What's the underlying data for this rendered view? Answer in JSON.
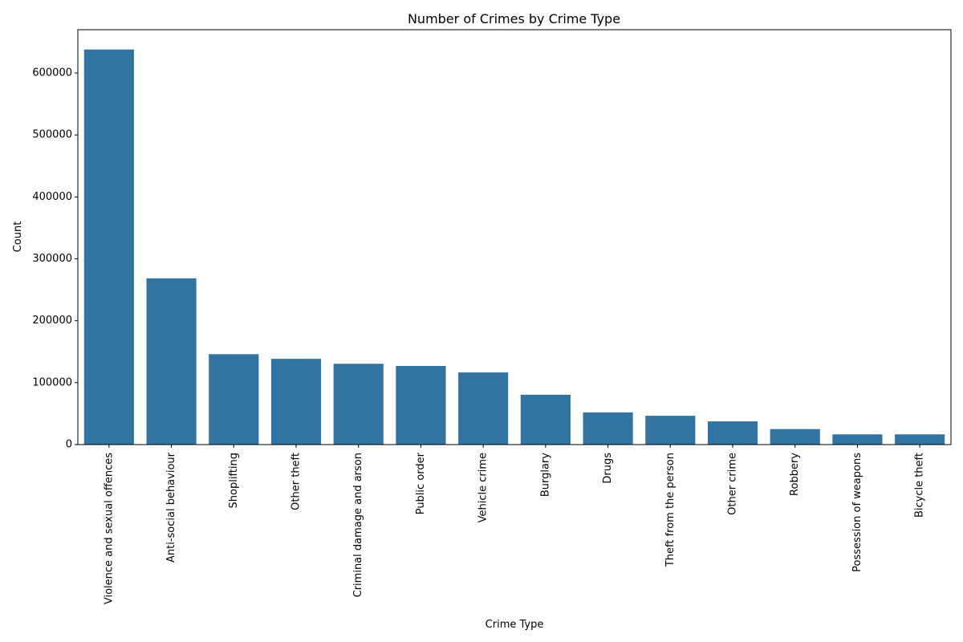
{
  "chart_data": {
    "type": "bar",
    "title": "Number of Crimes by Crime Type",
    "xlabel": "Crime Type",
    "ylabel": "Count",
    "categories": [
      "Violence and sexual offences",
      "Anti-social behaviour",
      "Shoplifting",
      "Other theft",
      "Criminal damage and arson",
      "Public order",
      "Vehicle crime",
      "Burglary",
      "Drugs",
      "Theft from the person",
      "Other crime",
      "Robbery",
      "Possession of weapons",
      "Bicycle theft"
    ],
    "values": [
      638000,
      268500,
      146000,
      138500,
      130500,
      127000,
      116500,
      80500,
      52000,
      46500,
      37500,
      25000,
      16500,
      16500
    ],
    "ylim": [
      0,
      670000
    ],
    "yticks": [
      0,
      100000,
      200000,
      300000,
      400000,
      500000,
      600000
    ],
    "ytick_labels": [
      "0",
      "100000",
      "200000",
      "300000",
      "400000",
      "500000",
      "600000"
    ],
    "bar_color": "#3274a1",
    "grid": false,
    "legend": "none"
  }
}
